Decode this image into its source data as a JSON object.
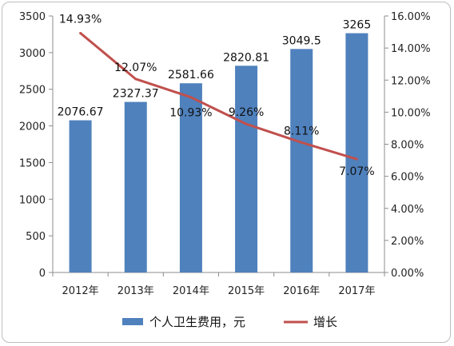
{
  "chart_data": {
    "type": "bar",
    "categories": [
      "2012年",
      "2013年",
      "2014年",
      "2015年",
      "2016年",
      "2017年"
    ],
    "series": [
      {
        "name": "个人卫生费用，元",
        "type": "bar",
        "axis": "left",
        "values": [
          2076.67,
          2327.37,
          2581.66,
          2820.81,
          3049.5,
          3265
        ],
        "labels": [
          "2076.67",
          "2327.37",
          "2581.66",
          "2820.81",
          "3049.5",
          "3265"
        ],
        "color": "#4f81bd"
      },
      {
        "name": "增长",
        "type": "line",
        "axis": "right",
        "values": [
          14.93,
          12.07,
          10.93,
          9.26,
          8.11,
          7.07
        ],
        "labels": [
          "14.93%",
          "12.07%",
          "10.93%",
          "9.26%",
          "8.11%",
          "7.07%"
        ],
        "color": "#c0504d"
      }
    ],
    "y_left": {
      "ylim": [
        0,
        3500
      ],
      "ticks": [
        0,
        500,
        1000,
        1500,
        2000,
        2500,
        3000,
        3500
      ],
      "tick_labels": [
        "0",
        "500",
        "1000",
        "1500",
        "2000",
        "2500",
        "3000",
        "3500"
      ]
    },
    "y_right": {
      "ylim": [
        0,
        16
      ],
      "ticks": [
        0,
        2,
        4,
        6,
        8,
        10,
        12,
        14,
        16
      ],
      "tick_labels": [
        "0.00%",
        "2.00%",
        "4.00%",
        "6.00%",
        "8.00%",
        "10.00%",
        "12.00%",
        "14.00%",
        "16.00%"
      ]
    },
    "grid": false,
    "legend": "bottom"
  }
}
